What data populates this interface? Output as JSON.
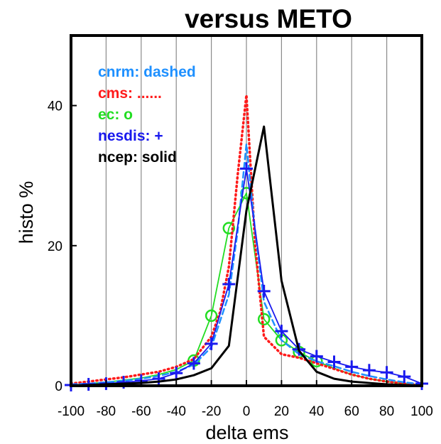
{
  "chart_data": {
    "type": "line",
    "title": "versus METO",
    "xlabel": "delta ems",
    "ylabel": "histo %",
    "xlim": [
      -100,
      100
    ],
    "ylim": [
      0,
      50
    ],
    "xticks": [
      -100,
      -80,
      -60,
      -40,
      -20,
      0,
      20,
      40,
      60,
      80,
      100
    ],
    "yticks": [
      0,
      20,
      40
    ],
    "grid": "vertical",
    "legend_position": "top-left",
    "legend": [
      {
        "text": "cnrm: dashed",
        "color": "#1e90ff"
      },
      {
        "text": "cms: ......",
        "color": "#ff1a1a"
      },
      {
        "text": "ec: o",
        "color": "#22dd22"
      },
      {
        "text": "nesdis: +",
        "color": "#1a1aee"
      },
      {
        "text": "ncep: solid",
        "color": "#000000"
      }
    ],
    "series": [
      {
        "id": "cnrm",
        "color": "#1e90ff",
        "style": "dashed",
        "x": [
          -100,
          -90,
          -80,
          -70,
          -60,
          -50,
          -40,
          -30,
          -20,
          -10,
          -5,
          0,
          5,
          10,
          20,
          30,
          40,
          50,
          60,
          70,
          80,
          90,
          100
        ],
        "y": [
          0.2,
          0.3,
          0.5,
          0.7,
          1.0,
          1.4,
          2.0,
          3.0,
          5.5,
          13.0,
          22.0,
          34.5,
          22.0,
          12.0,
          6.5,
          4.5,
          3.5,
          2.8,
          2.0,
          1.4,
          0.9,
          0.5,
          0.2
        ]
      },
      {
        "id": "cms",
        "color": "#ff1a1a",
        "style": "dotted",
        "x": [
          -100,
          -90,
          -80,
          -70,
          -60,
          -50,
          -40,
          -30,
          -20,
          -15,
          -10,
          -5,
          0,
          5,
          10,
          20,
          30,
          40,
          50,
          60,
          70,
          80,
          90,
          100
        ],
        "y": [
          0.3,
          0.6,
          0.9,
          1.2,
          1.6,
          2.0,
          2.7,
          3.8,
          7.0,
          10.5,
          17.0,
          30.0,
          41.5,
          20.0,
          7.0,
          4.5,
          4.0,
          3.2,
          2.4,
          1.6,
          1.0,
          0.6,
          0.3,
          0.1
        ]
      },
      {
        "id": "ec",
        "color": "#22dd22",
        "style": "markers-o",
        "x": [
          -100,
          -90,
          -80,
          -70,
          -60,
          -50,
          -40,
          -30,
          -20,
          -10,
          0,
          10,
          20,
          30,
          40,
          50,
          60,
          70,
          80,
          90,
          100
        ],
        "y": [
          0.1,
          0.3,
          0.5,
          0.8,
          1.1,
          1.6,
          2.3,
          3.6,
          10.0,
          22.5,
          27.5,
          9.5,
          6.5,
          4.8,
          3.5,
          2.5,
          1.6,
          1.0,
          0.6,
          0.3,
          0.1
        ]
      },
      {
        "id": "nesdis",
        "color": "#1a1aee",
        "style": "markers-plus",
        "x": [
          -100,
          -90,
          -80,
          -70,
          -60,
          -50,
          -40,
          -30,
          -20,
          -10,
          0,
          10,
          20,
          30,
          40,
          50,
          60,
          70,
          80,
          90,
          100
        ],
        "y": [
          0.1,
          0.2,
          0.3,
          0.5,
          0.7,
          1.0,
          1.8,
          3.2,
          6.0,
          14.5,
          31.0,
          13.5,
          7.8,
          5.2,
          4.2,
          3.4,
          2.7,
          2.2,
          1.9,
          1.3,
          0.3
        ]
      },
      {
        "id": "ncep",
        "color": "#000000",
        "style": "solid",
        "x": [
          -100,
          -90,
          -80,
          -70,
          -60,
          -50,
          -40,
          -30,
          -20,
          -10,
          0,
          10,
          20,
          30,
          40,
          50,
          60,
          70,
          80,
          90,
          100
        ],
        "y": [
          0.0,
          0.1,
          0.2,
          0.3,
          0.4,
          0.6,
          0.9,
          1.5,
          2.5,
          5.7,
          25.0,
          37.0,
          15.0,
          5.0,
          2.0,
          1.0,
          0.6,
          0.4,
          0.2,
          0.1,
          0.0
        ]
      }
    ]
  }
}
